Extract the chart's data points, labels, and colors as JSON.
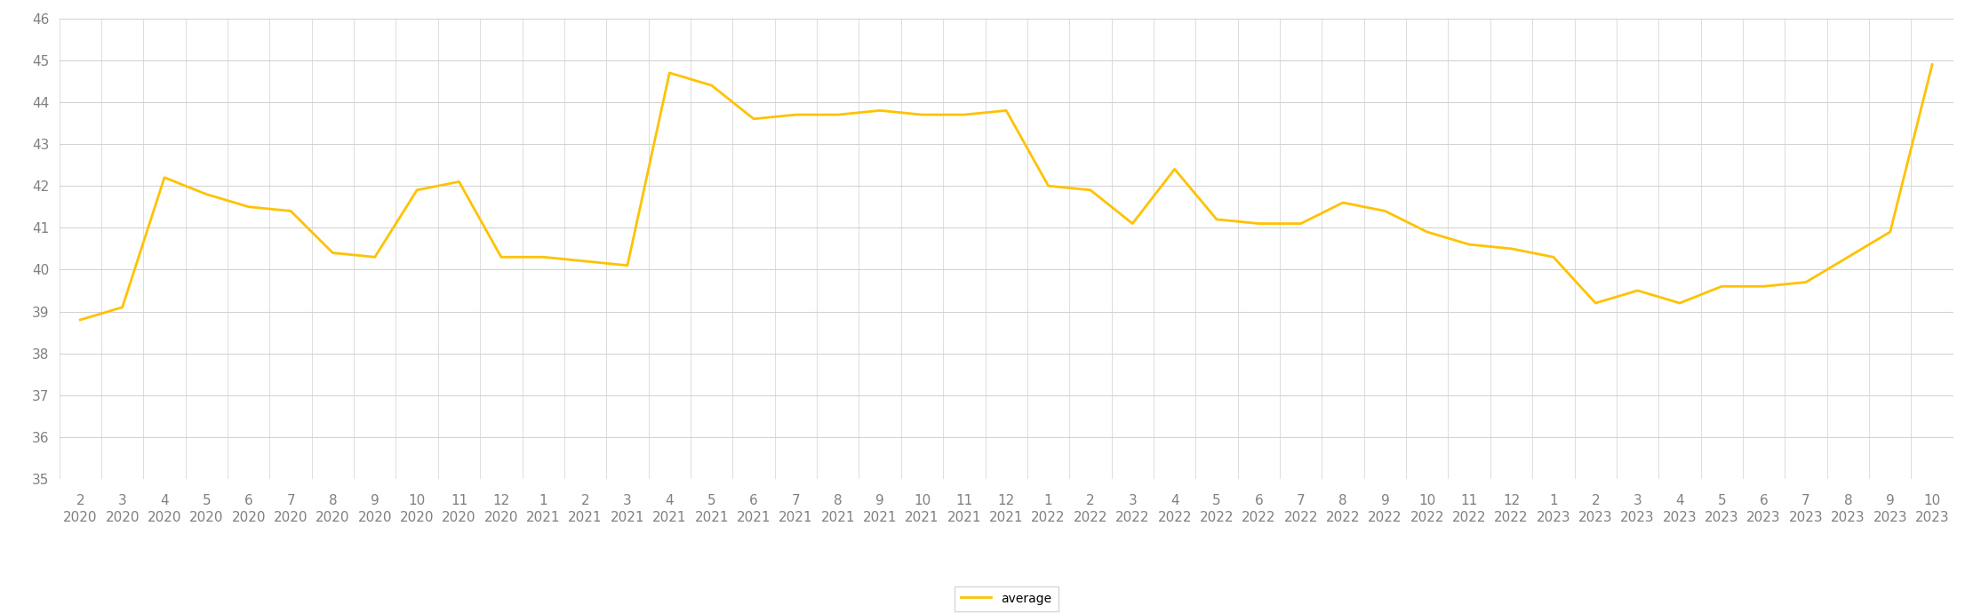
{
  "labels_month": [
    "2",
    "3",
    "4",
    "5",
    "6",
    "7",
    "8",
    "9",
    "10",
    "11",
    "12",
    "1",
    "2",
    "3",
    "4",
    "5",
    "6",
    "7",
    "8",
    "9",
    "10",
    "11",
    "12",
    "1",
    "2",
    "3",
    "4",
    "5",
    "6",
    "7",
    "8",
    "9",
    "10",
    "11",
    "12",
    "1",
    "2",
    "3",
    "4",
    "5",
    "6",
    "7",
    "8",
    "9",
    "10"
  ],
  "labels_year": [
    "2020",
    "2020",
    "2020",
    "2020",
    "2020",
    "2020",
    "2020",
    "2020",
    "2020",
    "2020",
    "2020",
    "2021",
    "2021",
    "2021",
    "2021",
    "2021",
    "2021",
    "2021",
    "2021",
    "2021",
    "2021",
    "2021",
    "2021",
    "2022",
    "2022",
    "2022",
    "2022",
    "2022",
    "2022",
    "2022",
    "2022",
    "2022",
    "2022",
    "2022",
    "2022",
    "2023",
    "2023",
    "2023",
    "2023",
    "2023",
    "2023",
    "2023",
    "2023",
    "2023",
    "2023"
  ],
  "values": [
    38.8,
    39.1,
    42.2,
    41.8,
    41.5,
    41.4,
    40.4,
    40.3,
    41.9,
    42.1,
    40.3,
    40.3,
    40.2,
    40.1,
    44.7,
    44.4,
    43.6,
    43.7,
    43.7,
    43.8,
    43.7,
    43.7,
    43.8,
    42.0,
    41.9,
    41.1,
    42.4,
    41.2,
    41.1,
    41.1,
    41.6,
    41.4,
    40.9,
    40.6,
    40.5,
    40.3,
    39.2,
    39.5,
    39.2,
    39.6,
    39.6,
    39.7,
    40.3,
    40.9,
    44.9
  ],
  "line_color": "#FFC200",
  "line_width": 2.0,
  "ylim": [
    35,
    46
  ],
  "yticks": [
    35,
    36,
    37,
    38,
    39,
    40,
    41,
    42,
    43,
    44,
    45,
    46
  ],
  "legend_label": "average",
  "background_color": "#ffffff",
  "grid_color": "#d0d0d0",
  "tick_label_color": "#808080",
  "tick_font_size": 11,
  "legend_font_size": 10,
  "figsize": [
    22.2,
    6.91
  ],
  "dpi": 100
}
